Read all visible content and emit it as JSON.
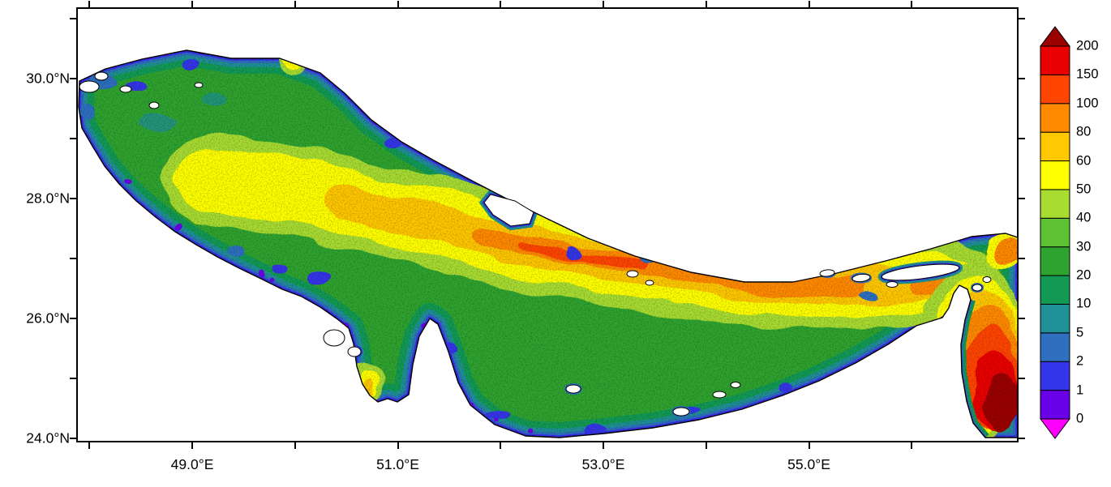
{
  "meta": {
    "description": "Filled-contour (color shaded) map of the Persian Gulf with the Strait of Hormuz and a corner of the Gulf of Oman, latitude/longitude axes and a discrete vertical color bar",
    "background_color": "#FFFFFF",
    "frame_color": "#000000"
  },
  "axes": {
    "x": {
      "tick_degrees": [
        48,
        49,
        50,
        51,
        52,
        53,
        54,
        55,
        56
      ],
      "labels": [
        {
          "deg": 49,
          "text": "49.0°E"
        },
        {
          "deg": 51,
          "text": "51.0°E"
        },
        {
          "deg": 53,
          "text": "53.0°E"
        },
        {
          "deg": 55,
          "text": "55.0°E"
        }
      ]
    },
    "y": {
      "tick_degrees": [
        24,
        25,
        26,
        27,
        28,
        29,
        30,
        31
      ],
      "labels": [
        {
          "deg": 30,
          "text": "30.0°N"
        },
        {
          "deg": 28,
          "text": "28.0°N"
        },
        {
          "deg": 26,
          "text": "26.0°N"
        },
        {
          "deg": 24,
          "text": "24.0°N"
        }
      ]
    }
  },
  "colorbar": {
    "levels_low_to_high": [
      0,
      1,
      2,
      5,
      10,
      20,
      30,
      40,
      50,
      60,
      80,
      100,
      150,
      200
    ],
    "labels_top_to_bottom": [
      "200",
      "150",
      "100",
      "80",
      "60",
      "50",
      "40",
      "30",
      "20",
      "10",
      "5",
      "2",
      "1",
      "0"
    ],
    "band_keys_low_to_high": [
      "v0_1",
      "v1_2",
      "v2_5",
      "v5_10",
      "v10_20",
      "v20_30",
      "v30_40",
      "v40_50",
      "v50_60",
      "v60_80",
      "v80_100",
      "v100_150",
      "v150_200"
    ],
    "palette": {
      "under": "#FF00FF",
      "v0_1": "#6A00E8",
      "v1_2": "#3434E8",
      "v2_5": "#2E6FBF",
      "v5_10": "#1F9096",
      "v10_20": "#129A55",
      "v20_30": "#2FA32F",
      "v30_40": "#5CC233",
      "v40_50": "#A8DC30",
      "v50_60": "#FFFF00",
      "v60_80": "#FFC800",
      "v80_100": "#FF8A00",
      "v100_150": "#FF4500",
      "v150_200": "#E90000",
      "over": "#9B0000"
    }
  },
  "chart_data": {
    "type": "heatmap",
    "region": "Persian Gulf / Arabian Gulf with Strait of Hormuz and Gulf of Oman corner",
    "x_tick_labels": [
      "49.0°E",
      "51.0°E",
      "53.0°E",
      "55.0°E"
    ],
    "y_tick_labels": [
      "24.0°N",
      "26.0°N",
      "28.0°N",
      "30.0°N"
    ],
    "x_range_deg_east_approx": [
      47.9,
      57.0
    ],
    "y_range_deg_north_approx": [
      24.0,
      31.2
    ],
    "levels": [
      0,
      1,
      2,
      5,
      10,
      20,
      30,
      40,
      50,
      60,
      80,
      100,
      150,
      200
    ],
    "legend_position": "right",
    "field_pattern": "Low values (violet/blue, 0-10) fringe all coasts; mid values (green, 10-40) cover most of the basin; a high band (yellow-orange-red, 50-150) runs along the central axis toward the Strait of Hormuz; maximum values (red to dark red, 150->200) fill the Gulf of Oman at lower right; a small orange-red hotspot sits on the northwest coast; white areas are land (Qatar peninsula, Bahrain, Qeshm and small islands, Musandam peninsula)."
  }
}
